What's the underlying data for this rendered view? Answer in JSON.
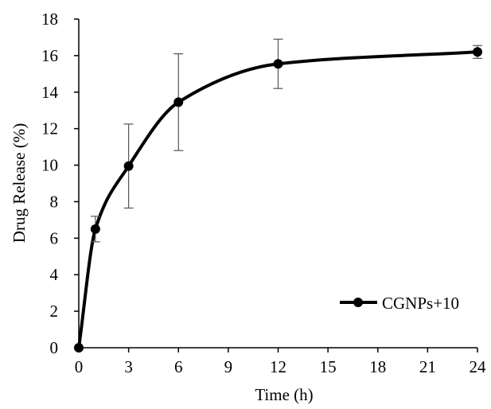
{
  "chart_data": {
    "type": "line",
    "xlabel": "Time (h)",
    "ylabel": "Drug Release (%)",
    "xlim": [
      0,
      24
    ],
    "ylim": [
      0,
      18
    ],
    "x_ticks": [
      0,
      3,
      6,
      9,
      12,
      15,
      18,
      21,
      24
    ],
    "y_ticks": [
      0,
      2,
      4,
      6,
      8,
      10,
      12,
      14,
      16,
      18
    ],
    "grid": false,
    "legend_position": "bottom-right",
    "smooth": true,
    "series": [
      {
        "name": "CGNPs+10",
        "color": "#000000",
        "marker": "circle",
        "x": [
          0,
          1,
          3,
          6,
          12,
          24
        ],
        "y": [
          0,
          6.5,
          9.95,
          13.45,
          15.55,
          16.2
        ],
        "error": [
          0,
          0.7,
          2.3,
          2.65,
          1.35,
          0.35
        ]
      }
    ]
  }
}
